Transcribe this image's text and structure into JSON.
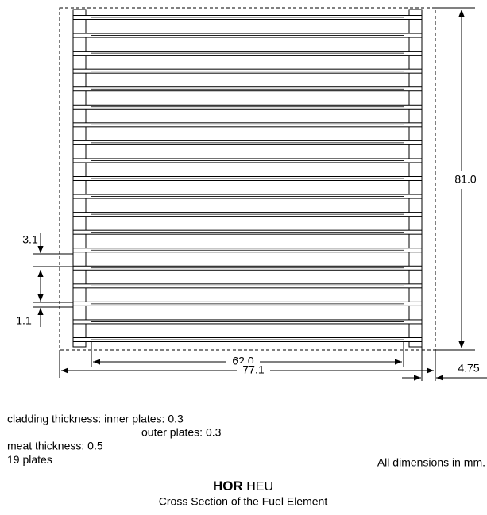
{
  "dimensions": {
    "height": "81.0",
    "pitch": "3.1",
    "gap": "1.1",
    "inner_width": "62.0",
    "side_plate": "4.75",
    "outer_width": "77.1"
  },
  "notes": {
    "cladding_inner": "cladding thickness: inner plates: 0.3",
    "cladding_outer": "outer plates: 0.3",
    "meat": "meat thickness:  0.5",
    "plates": {
      "count": 19,
      "unit": "plates"
    },
    "units": "All dimensions in mm."
  },
  "caption": {
    "name": "HOR",
    "enrichment": "HEU",
    "subtitle": "Cross Section of the Fuel Element"
  }
}
